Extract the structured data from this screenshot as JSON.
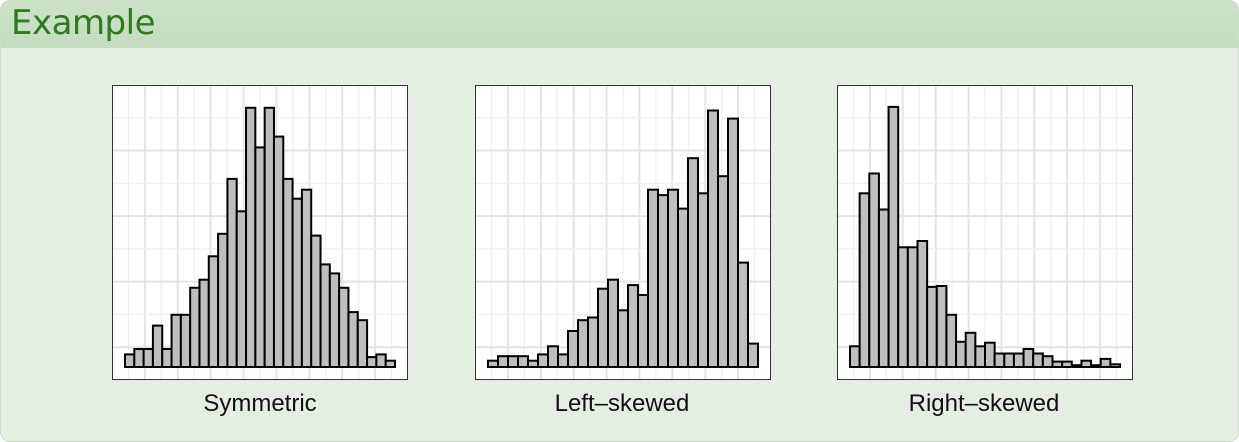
{
  "box": {
    "title": "Example"
  },
  "chart_data": [
    {
      "type": "bar",
      "title": "",
      "xlabel": "Symmetric",
      "ylabel": "",
      "grid": true,
      "ylim": [
        0,
        30
      ],
      "values": [
        1.4,
        2,
        2,
        4.6,
        2,
        5.8,
        5.8,
        8.8,
        9.7,
        12.3,
        14.8,
        20.9,
        17.3,
        28.8,
        24.4,
        28.8,
        25.6,
        20.9,
        18.7,
        19.7,
        14.6,
        11.4,
        10.4,
        8.8,
        6.1,
        5.2,
        1.1,
        1.4,
        0.7
      ]
    },
    {
      "type": "bar",
      "title": "",
      "xlabel": "Left–skewed",
      "ylabel": "",
      "grid": true,
      "ylim": [
        0,
        30
      ],
      "values": [
        0.7,
        1.2,
        1.2,
        1.2,
        0.7,
        1.4,
        2.3,
        1.4,
        4,
        5.2,
        5.5,
        8.7,
        9.7,
        6.3,
        9.1,
        8,
        19.7,
        19.1,
        19.7,
        17.6,
        23.2,
        19.3,
        28.5,
        21.2,
        27.6,
        11.6,
        2.6
      ]
    },
    {
      "type": "bar",
      "title": "",
      "xlabel": "Right–skewed",
      "ylabel": "",
      "grid": true,
      "ylim": [
        0,
        30
      ],
      "values": [
        2.3,
        19.3,
        21.5,
        17.5,
        28.9,
        13.3,
        13.3,
        14,
        8.9,
        9,
        5.8,
        2.8,
        3.8,
        2.3,
        2.7,
        1.5,
        1.5,
        1.5,
        2,
        1.5,
        1.2,
        0.6,
        0.6,
        0.2,
        0.7,
        0.2,
        0.9,
        0.3
      ]
    }
  ],
  "colors": {
    "bar_fill": "#bebebe",
    "bar_stroke": "#000000",
    "grid_major": "#e4e4e4",
    "grid_minor": "#efefef",
    "panel_bg": "#ffffff"
  }
}
